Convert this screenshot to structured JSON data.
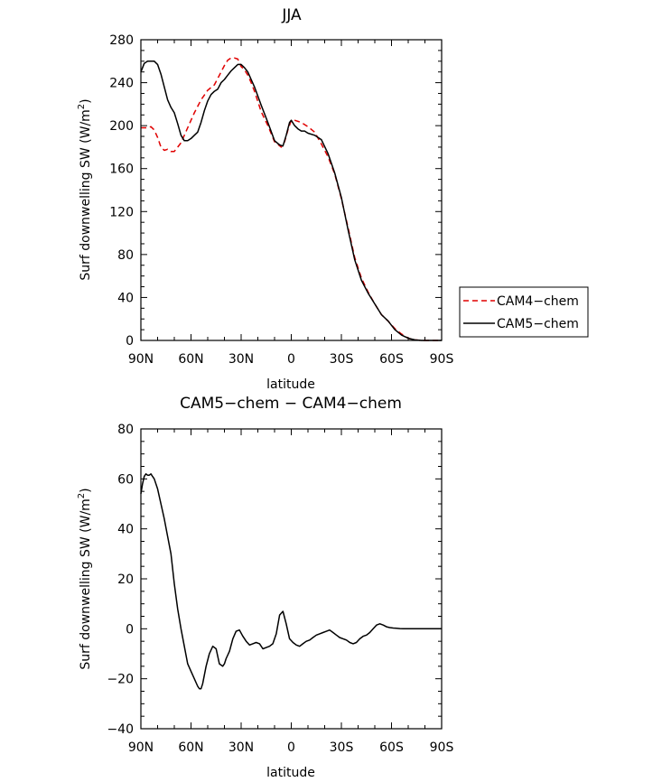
{
  "chart_data": [
    {
      "type": "line",
      "title": "JJA",
      "xlabel": "latitude",
      "ylabel": "Surf downwelling SW (W/m²)",
      "ylabel_main": "Surf downwelling SW (W/m",
      "ylabel_sup": "2",
      "ylabel_close": ")",
      "xlim": [
        -90,
        90
      ],
      "ylim": [
        0,
        280
      ],
      "x_axis_note": "x values in degrees latitude: negative = N, positive = S",
      "xticks": [
        -90,
        -60,
        -30,
        0,
        30,
        60,
        90
      ],
      "xtick_labels": [
        "90N",
        "60N",
        "30N",
        "0",
        "30S",
        "60S",
        "90S"
      ],
      "yticks": [
        0,
        40,
        80,
        120,
        160,
        200,
        240,
        280
      ],
      "ytick_labels": [
        "0",
        "40",
        "80",
        "120",
        "160",
        "200",
        "240",
        "280"
      ],
      "legend": {
        "position": "right",
        "entries": [
          "CAM4−chem",
          "CAM5−chem"
        ]
      },
      "series": [
        {
          "name": "CAM4−chem",
          "color": "#e00000",
          "dash": true,
          "x": [
            -90,
            -86,
            -84,
            -82,
            -80,
            -78,
            -76,
            -74,
            -72,
            -70,
            -66,
            -62,
            -58,
            -54,
            -50,
            -46,
            -42,
            -40,
            -38,
            -36,
            -34,
            -32,
            -30,
            -28,
            -26,
            -24,
            -22,
            -18,
            -14,
            -10,
            -6,
            -4,
            -2,
            0,
            2,
            6,
            10,
            14,
            18,
            22,
            26,
            30,
            34,
            38,
            42,
            46,
            50,
            54,
            58,
            62,
            66,
            70,
            74,
            78,
            82,
            86,
            90
          ],
          "y": [
            198,
            198,
            199,
            196,
            189,
            180,
            177,
            178,
            176,
            176,
            184,
            198,
            212,
            224,
            233,
            238,
            250,
            256,
            261,
            263,
            263,
            262,
            255,
            252,
            247,
            240,
            232,
            213,
            200,
            185,
            180,
            185,
            196,
            205,
            205,
            203,
            199,
            194,
            183,
            171,
            155,
            132,
            105,
            77,
            58,
            45,
            34,
            24,
            18,
            11,
            6,
            2,
            0.5,
            0,
            0,
            0,
            0
          ]
        },
        {
          "name": "CAM5−chem",
          "color": "#000000",
          "dash": false,
          "x": [
            -90,
            -88,
            -86,
            -84,
            -82,
            -80,
            -78,
            -76,
            -74,
            -72,
            -70,
            -68,
            -66,
            -64,
            -62,
            -60,
            -58,
            -56,
            -54,
            -52,
            -50,
            -48,
            -46,
            -44,
            -42,
            -40,
            -38,
            -36,
            -34,
            -32,
            -30,
            -28,
            -26,
            -24,
            -22,
            -18,
            -14,
            -10,
            -7,
            -5,
            -3,
            -1,
            0,
            2,
            4,
            6,
            8,
            10,
            14,
            18,
            22,
            26,
            30,
            34,
            38,
            42,
            46,
            50,
            54,
            58,
            62,
            66,
            70,
            74,
            78,
            82,
            86,
            90
          ],
          "y": [
            250,
            258,
            260,
            260,
            260,
            257,
            248,
            236,
            224,
            217,
            212,
            202,
            191,
            186,
            186,
            188,
            191,
            194,
            203,
            214,
            223,
            229,
            232,
            234,
            240,
            243,
            247,
            251,
            254,
            257,
            257,
            254,
            250,
            243,
            236,
            219,
            203,
            186,
            182,
            181,
            191,
            203,
            205,
            200,
            197,
            195,
            195,
            193,
            191,
            187,
            174,
            156,
            133,
            103,
            75,
            56,
            44,
            34,
            24,
            18,
            10,
            5,
            2,
            0.5,
            0,
            0,
            0,
            0
          ]
        }
      ]
    },
    {
      "type": "line",
      "title": "CAM5−chem − CAM4−chem",
      "xlabel": "latitude",
      "ylabel": "Surf downwelling SW (W/m²)",
      "ylabel_main": "Surf downwelling SW (W/m",
      "ylabel_sup": "2",
      "ylabel_close": ")",
      "xlim": [
        -90,
        90
      ],
      "ylim": [
        -40,
        80
      ],
      "xticks": [
        -90,
        -60,
        -30,
        0,
        30,
        60,
        90
      ],
      "xtick_labels": [
        "90N",
        "60N",
        "30N",
        "0",
        "30S",
        "60S",
        "90S"
      ],
      "yticks": [
        -40,
        -20,
        0,
        20,
        40,
        60,
        80
      ],
      "ytick_labels": [
        "−40",
        "−20",
        "0",
        "20",
        "40",
        "60",
        "80"
      ],
      "series": [
        {
          "color": "#000000",
          "dash": false,
          "x": [
            -90,
            -89,
            -88,
            -87,
            -86,
            -85,
            -84,
            -83,
            -82,
            -80,
            -78,
            -76,
            -74,
            -72,
            -70,
            -68,
            -66,
            -64,
            -62,
            -60,
            -58,
            -56,
            -55,
            -54,
            -53,
            -51,
            -49,
            -47,
            -45,
            -43,
            -41,
            -40,
            -39,
            -37,
            -35,
            -33,
            -31,
            -29,
            -27,
            -25,
            -23,
            -21,
            -19,
            -17,
            -15,
            -13,
            -11,
            -9,
            -7,
            -5,
            -3,
            -1,
            1,
            3,
            5,
            7,
            9,
            11,
            13,
            15,
            17,
            19,
            21,
            23,
            25,
            27,
            29,
            31,
            33,
            35,
            37,
            39,
            41,
            43,
            45,
            47,
            49,
            51,
            53,
            55,
            57,
            59,
            61,
            63,
            65,
            67,
            70,
            75,
            80,
            85,
            90
          ],
          "y": [
            54,
            58,
            61,
            62,
            61.5,
            61.5,
            62,
            61,
            60,
            56,
            50,
            44,
            37,
            30,
            18,
            8,
            0,
            -7,
            -14,
            -17,
            -20,
            -23,
            -24,
            -24,
            -22,
            -15,
            -10,
            -7,
            -8,
            -14,
            -15,
            -14,
            -12,
            -9,
            -4,
            -1,
            -0.5,
            -3,
            -5,
            -6.5,
            -6,
            -5.5,
            -6,
            -8,
            -7.5,
            -7,
            -6,
            -2,
            5.5,
            7,
            2,
            -4,
            -5.5,
            -6.5,
            -7,
            -6,
            -5,
            -4.5,
            -3.5,
            -2.5,
            -2,
            -1.5,
            -1,
            -0.5,
            -1.5,
            -2.5,
            -3.5,
            -4,
            -4.5,
            -5.5,
            -6,
            -5.5,
            -4,
            -3,
            -2.5,
            -1.5,
            0,
            1.5,
            2,
            1.5,
            0.8,
            0.5,
            0.3,
            0.2,
            0.1,
            0,
            0,
            0,
            0,
            0,
            0
          ]
        }
      ]
    }
  ]
}
